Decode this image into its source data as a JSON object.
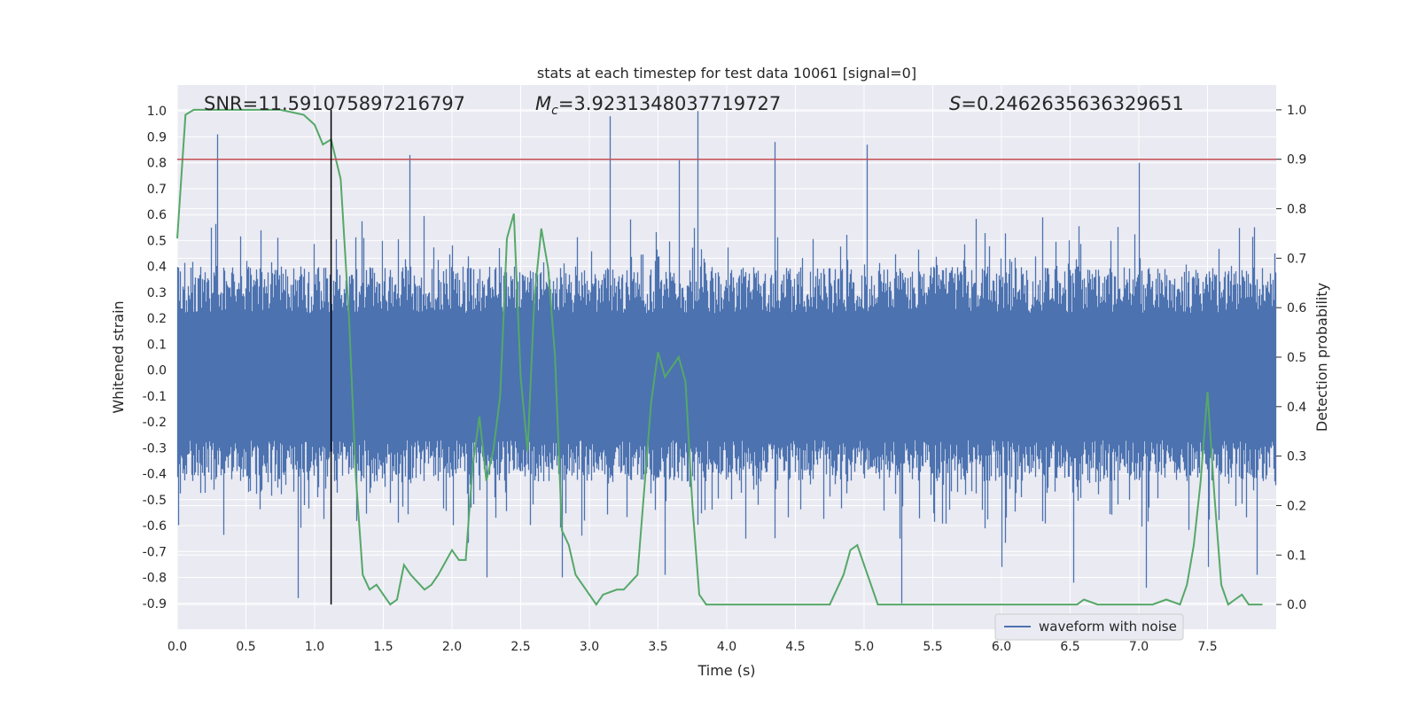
{
  "chart_data": {
    "type": "line",
    "title": "stats at each timestep for test data 10061 [signal=0]",
    "xlabel": "Time (s)",
    "ylabel_left": "Whitened strain",
    "ylabel_right": "Detection probability",
    "xlim": [
      0,
      8
    ],
    "ylim_left": [
      -1.0,
      1.1
    ],
    "ylim_right": [
      -0.05,
      1.05
    ],
    "x_ticks": [
      "0.0",
      "0.5",
      "1.0",
      "1.5",
      "2.0",
      "2.5",
      "3.0",
      "3.5",
      "4.0",
      "4.5",
      "5.0",
      "5.5",
      "6.0",
      "6.5",
      "7.0",
      "7.5"
    ],
    "y_left_ticks": [
      "1.0",
      "0.9",
      "0.8",
      "0.7",
      "0.6",
      "0.5",
      "0.4",
      "0.3",
      "0.2",
      "0.1",
      "0.0",
      "-0.1",
      "-0.2",
      "-0.3",
      "-0.4",
      "-0.5",
      "-0.6",
      "-0.7",
      "-0.8",
      "-0.9"
    ],
    "y_right_ticks": [
      "1.0",
      "0.9",
      "0.8",
      "0.7",
      "0.6",
      "0.5",
      "0.4",
      "0.3",
      "0.2",
      "0.1",
      "0.0"
    ],
    "annotations": {
      "snr": "SNR=11.591075897216797",
      "mc_symbol": "M",
      "mc_sub": "c",
      "mc_value": "=3.9231348037719727",
      "s_symbol": "S",
      "s_value": "=0.2462635636329651"
    },
    "grid": true,
    "legend": {
      "position": "lower-right",
      "entries": [
        "waveform with noise"
      ]
    },
    "colors": {
      "waveform": "#4c72b0",
      "probability": "#55a868",
      "threshold": "#c44e52",
      "marker": "#000000",
      "background": "#eaeaf2"
    },
    "threshold_right": 0.9,
    "vertical_marker_x": 1.12,
    "series": [
      {
        "name": "waveform with noise",
        "axis": "left",
        "samples": 4096,
        "envelope_upper_typical": 0.4,
        "envelope_lower_typical": -0.45,
        "peaks": [
          [
            0.29,
            0.91
          ],
          [
            1.69,
            0.83
          ],
          [
            3.15,
            0.98
          ],
          [
            3.65,
            0.81
          ],
          [
            3.79,
            1.0
          ],
          [
            4.35,
            0.88
          ],
          [
            5.02,
            0.87
          ],
          [
            7.0,
            0.8
          ],
          [
            0.88,
            -0.88
          ],
          [
            2.25,
            -0.8
          ],
          [
            2.8,
            -0.8
          ],
          [
            3.55,
            -0.79
          ],
          [
            5.27,
            -0.9
          ],
          [
            6.0,
            -0.76
          ],
          [
            6.52,
            -0.82
          ],
          [
            7.05,
            -0.84
          ],
          [
            7.5,
            -0.76
          ],
          [
            7.86,
            -0.79
          ]
        ]
      },
      {
        "name": "detection probability",
        "axis": "right",
        "x": [
          0.0,
          0.06,
          0.12,
          0.25,
          0.5,
          0.75,
          0.92,
          1.0,
          1.06,
          1.12,
          1.19,
          1.25,
          1.3,
          1.35,
          1.4,
          1.45,
          1.5,
          1.55,
          1.6,
          1.65,
          1.7,
          1.8,
          1.85,
          1.9,
          2.0,
          2.05,
          2.1,
          2.15,
          2.2,
          2.25,
          2.3,
          2.35,
          2.4,
          2.45,
          2.5,
          2.55,
          2.6,
          2.65,
          2.7,
          2.75,
          2.8,
          2.85,
          2.9,
          2.95,
          3.05,
          3.1,
          3.2,
          3.25,
          3.35,
          3.45,
          3.5,
          3.55,
          3.6,
          3.65,
          3.7,
          3.75,
          3.8,
          3.85,
          3.9,
          3.95,
          4.0,
          4.1,
          4.25,
          4.5,
          4.75,
          4.85,
          4.9,
          4.95,
          5.0,
          5.05,
          5.1,
          5.2,
          5.4,
          5.55,
          5.6,
          5.7,
          5.8,
          5.9,
          6.0,
          6.2,
          6.3,
          6.4,
          6.5,
          6.55,
          6.6,
          6.7,
          6.8,
          6.9,
          7.0,
          7.1,
          7.2,
          7.3,
          7.35,
          7.4,
          7.45,
          7.5,
          7.55,
          7.6,
          7.65,
          7.7,
          7.75,
          7.8,
          7.9
        ],
        "y": [
          0.74,
          0.99,
          1.0,
          1.0,
          1.0,
          1.0,
          0.99,
          0.97,
          0.93,
          0.94,
          0.86,
          0.58,
          0.26,
          0.06,
          0.03,
          0.04,
          0.02,
          0.0,
          0.01,
          0.08,
          0.06,
          0.03,
          0.04,
          0.06,
          0.11,
          0.09,
          0.09,
          0.28,
          0.38,
          0.25,
          0.31,
          0.42,
          0.74,
          0.79,
          0.46,
          0.31,
          0.62,
          0.76,
          0.68,
          0.5,
          0.15,
          0.12,
          0.06,
          0.04,
          0.0,
          0.02,
          0.03,
          0.03,
          0.06,
          0.41,
          0.51,
          0.46,
          0.48,
          0.5,
          0.45,
          0.2,
          0.02,
          0.0,
          0.0,
          0.0,
          0.0,
          0.0,
          0.0,
          0.0,
          0.0,
          0.06,
          0.11,
          0.12,
          0.08,
          0.04,
          0.0,
          0.0,
          0.0,
          0.0,
          0.0,
          0.0,
          0.0,
          0.0,
          0.0,
          0.0,
          0.0,
          0.0,
          0.0,
          0.0,
          0.01,
          0.0,
          0.0,
          0.0,
          0.0,
          0.0,
          0.01,
          0.0,
          0.04,
          0.12,
          0.25,
          0.43,
          0.22,
          0.04,
          0.0,
          0.01,
          0.02,
          0.0,
          0.0
        ]
      }
    ]
  }
}
